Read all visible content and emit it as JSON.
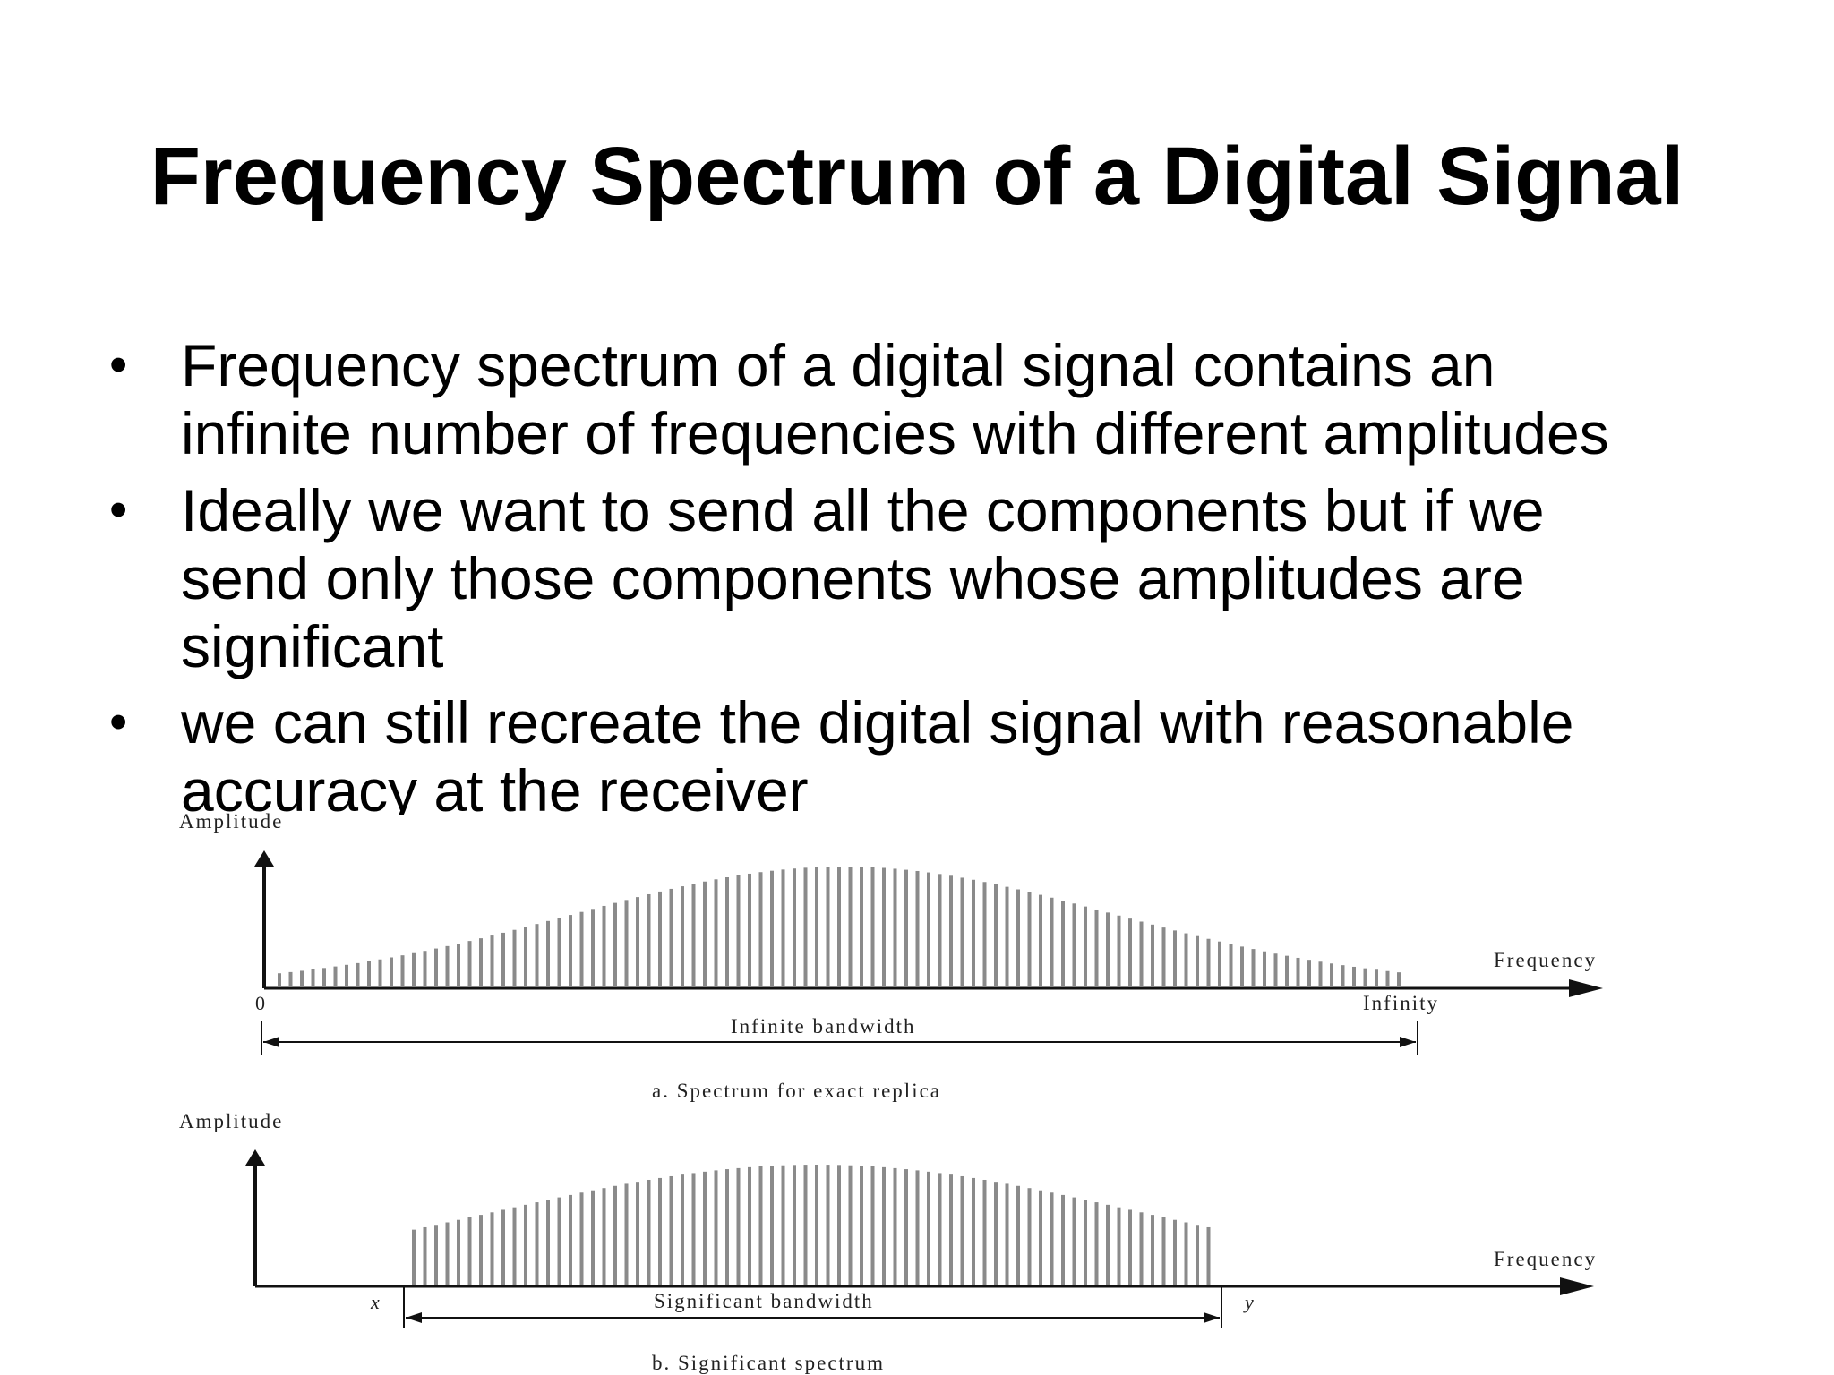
{
  "slide": {
    "title": "Frequency Spectrum of a Digital Signal",
    "bullets": [
      "Frequency spectrum of a digital signal contains an\ninfinite number of frequencies with different amplitudes",
      "Ideally we want to send all the components but if we\nsend only those components whose amplitudes are\nsignificant",
      "we can still recreate the digital signal with reasonable\naccuracy at the receiver"
    ]
  },
  "figure": {
    "panel_a": {
      "y_axis_label": "Amplitude",
      "x_axis_label": "Frequency",
      "x_start_label": "0",
      "x_end_label": "Infinity",
      "bandwidth_label": "Infinite bandwidth",
      "caption": "a. Spectrum for exact replica"
    },
    "panel_b": {
      "y_axis_label": "Amplitude",
      "x_axis_label": "Frequency",
      "x_start_label": "x",
      "x_end_label": "y",
      "bandwidth_label": "Significant bandwidth",
      "caption": "b. Significant spectrum"
    }
  }
}
